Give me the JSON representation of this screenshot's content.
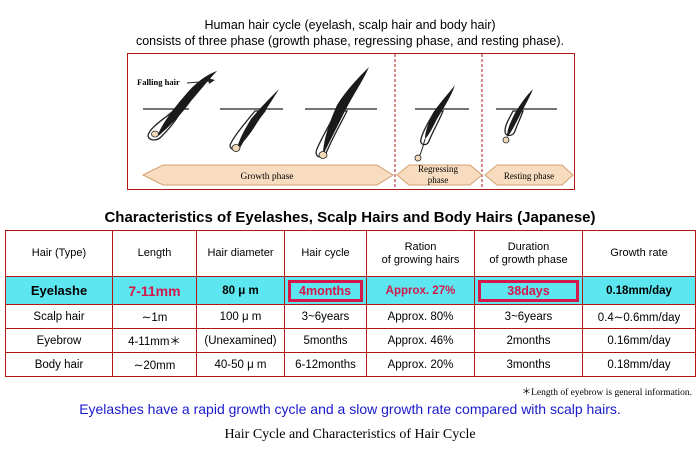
{
  "intro": {
    "line1": "Human hair cycle (eyelash, scalp hair and body hair)",
    "line2": "consists of three phase (growth phase, regressing phase, and resting phase)."
  },
  "diagram": {
    "falling_hair_label": "Falling hair",
    "growth_phase_label": "Growth phase",
    "regressing_phase_label_1": "Regressing",
    "regressing_phase_label_2": "phase",
    "resting_phase_label": "Resting phase",
    "colors": {
      "frame": "#b01818",
      "arrow_fill": "#f7dcc0",
      "hair": "#1a1a1a",
      "bulb": "#f2d9b8"
    }
  },
  "table": {
    "title": "Characteristics of Eyelashes, Scalp Hairs and Body Hairs (Japanese)",
    "headers": [
      "Hair (Type)",
      "Length",
      "Hair diameter",
      "Hair cycle",
      "Ration\nof growing hairs",
      "Duration\nof growth phase",
      "Growth rate"
    ],
    "rows": [
      [
        "Eyelashe",
        "7-11mm",
        "80 μ m",
        "4months",
        "Approx. 27%",
        "38days",
        "0.18mm/day"
      ],
      [
        "Scalp hair",
        "∼1m",
        "100 μ m",
        "3~6years",
        "Approx. 80%",
        "3~6years",
        "0.4∼0.6mm/day"
      ],
      [
        "Eyebrow",
        "4-11mm＊",
        "(Unexamined)",
        "5months",
        "Approx. 46%",
        "2months",
        "0.16mm/day"
      ],
      [
        "Body hair",
        "∼20mm",
        "40-50 μ m",
        "6-12months",
        "Approx. 20%",
        "3months",
        "0.18mm/day"
      ]
    ],
    "colors": {
      "highlight_row": "#5ce6f0",
      "highlight_text": "#d4184a",
      "border": "#b01818"
    }
  },
  "footnote": "＊Length of eyebrow is general information.",
  "summary": "Eyelashes have a rapid growth cycle and a slow growth rate compared with scalp hairs.",
  "caption": "Hair Cycle and Characteristics of Hair Cycle"
}
